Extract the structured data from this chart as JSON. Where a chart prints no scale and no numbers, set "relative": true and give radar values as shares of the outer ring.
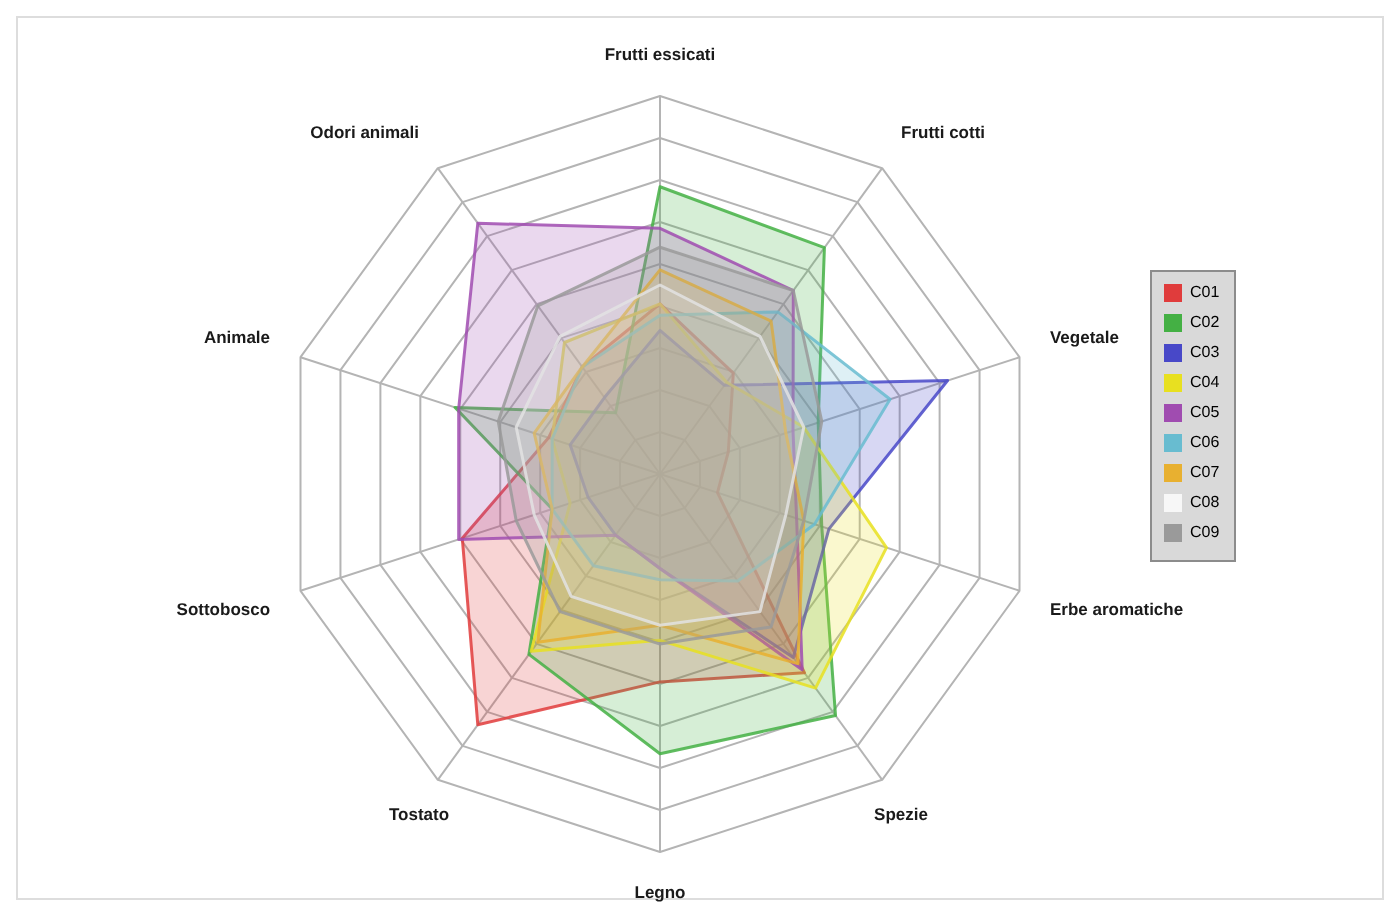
{
  "chart_data": {
    "type": "radar",
    "relative": true,
    "grid": true,
    "legend": "right",
    "categories": [
      "Frutti essicati",
      "Frutti cotti",
      "Vegetale",
      "Erbe aromatiche",
      "Spezie",
      "Legno",
      "Tostato",
      "Sottobosco",
      "Animale",
      "Odori animali"
    ],
    "series": [
      {
        "name": "C01",
        "color": "#e03c3c",
        "values": [
          0.45,
          0.33,
          0.19,
          0.16,
          0.65,
          0.55,
          0.82,
          0.55,
          0.31,
          0.35
        ]
      },
      {
        "name": "C02",
        "color": "#44b044",
        "values": [
          0.76,
          0.74,
          0.44,
          0.45,
          0.79,
          0.74,
          0.59,
          0.3,
          0.57,
          0.2
        ]
      },
      {
        "name": "C03",
        "color": "#4848c8",
        "values": [
          0.38,
          0.29,
          0.8,
          0.47,
          0.6,
          0.25,
          0.2,
          0.2,
          0.25,
          0.25
        ]
      },
      {
        "name": "C04",
        "color": "#e8e020",
        "values": [
          0.45,
          0.3,
          0.4,
          0.63,
          0.7,
          0.44,
          0.58,
          0.25,
          0.3,
          0.43
        ]
      },
      {
        "name": "C05",
        "color": "#a04cb0",
        "values": [
          0.65,
          0.6,
          0.37,
          0.38,
          0.64,
          0.25,
          0.2,
          0.56,
          0.56,
          0.82
        ]
      },
      {
        "name": "C06",
        "color": "#68bcd0",
        "values": [
          0.42,
          0.53,
          0.64,
          0.43,
          0.35,
          0.28,
          0.3,
          0.3,
          0.3,
          0.35
        ]
      },
      {
        "name": "C07",
        "color": "#e8b030",
        "values": [
          0.54,
          0.5,
          0.35,
          0.4,
          0.62,
          0.4,
          0.55,
          0.3,
          0.35,
          0.35
        ]
      },
      {
        "name": "C08",
        "color": "#f7f7f7",
        "values": [
          0.5,
          0.45,
          0.4,
          0.35,
          0.45,
          0.4,
          0.4,
          0.35,
          0.4,
          0.45
        ]
      },
      {
        "name": "C09",
        "color": "#9a9a9a",
        "values": [
          0.6,
          0.6,
          0.45,
          0.4,
          0.5,
          0.45,
          0.45,
          0.4,
          0.45,
          0.55
        ]
      }
    ]
  }
}
